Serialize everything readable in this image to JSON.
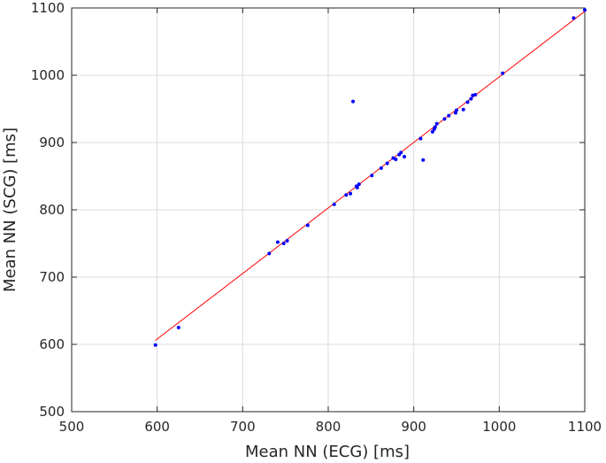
{
  "chart_data": {
    "type": "scatter",
    "title": "",
    "xlabel": "Mean NN (ECG) [ms]",
    "ylabel": "Mean NN (SCG) [ms]",
    "xlim": [
      500,
      1100
    ],
    "ylim": [
      500,
      1100
    ],
    "xticks": [
      500,
      600,
      700,
      800,
      900,
      1000,
      1100
    ],
    "yticks": [
      500,
      600,
      700,
      800,
      900,
      1000,
      1100
    ],
    "grid": true,
    "colors": {
      "points": "#0000ff",
      "fit_line": "#ff0000",
      "grid": "#dcdcdc",
      "axes": "#262626"
    },
    "series": [
      {
        "type": "scatter",
        "points": [
          [
            598,
            599
          ],
          [
            625,
            625
          ],
          [
            731,
            735
          ],
          [
            741,
            752
          ],
          [
            748,
            750
          ],
          [
            752,
            754
          ],
          [
            776,
            777
          ],
          [
            807,
            808
          ],
          [
            821,
            822
          ],
          [
            826,
            824
          ],
          [
            829,
            961
          ],
          [
            833,
            835
          ],
          [
            834,
            833
          ],
          [
            836,
            838
          ],
          [
            851,
            851
          ],
          [
            862,
            862
          ],
          [
            869,
            869
          ],
          [
            876,
            877
          ],
          [
            879,
            875
          ],
          [
            883,
            882
          ],
          [
            885,
            885
          ],
          [
            889,
            879
          ],
          [
            908,
            906
          ],
          [
            911,
            874
          ],
          [
            922,
            916
          ],
          [
            924,
            920
          ],
          [
            925,
            923
          ],
          [
            927,
            928
          ],
          [
            936,
            935
          ],
          [
            941,
            940
          ],
          [
            949,
            944
          ],
          [
            950,
            948
          ],
          [
            958,
            949
          ],
          [
            963,
            960
          ],
          [
            967,
            965
          ],
          [
            969,
            970
          ],
          [
            972,
            971
          ],
          [
            1004,
            1003
          ],
          [
            1087,
            1085
          ],
          [
            1100,
            1097
          ]
        ]
      },
      {
        "type": "line",
        "points": [
          [
            598,
            606
          ],
          [
            1100,
            1095
          ]
        ]
      }
    ]
  }
}
